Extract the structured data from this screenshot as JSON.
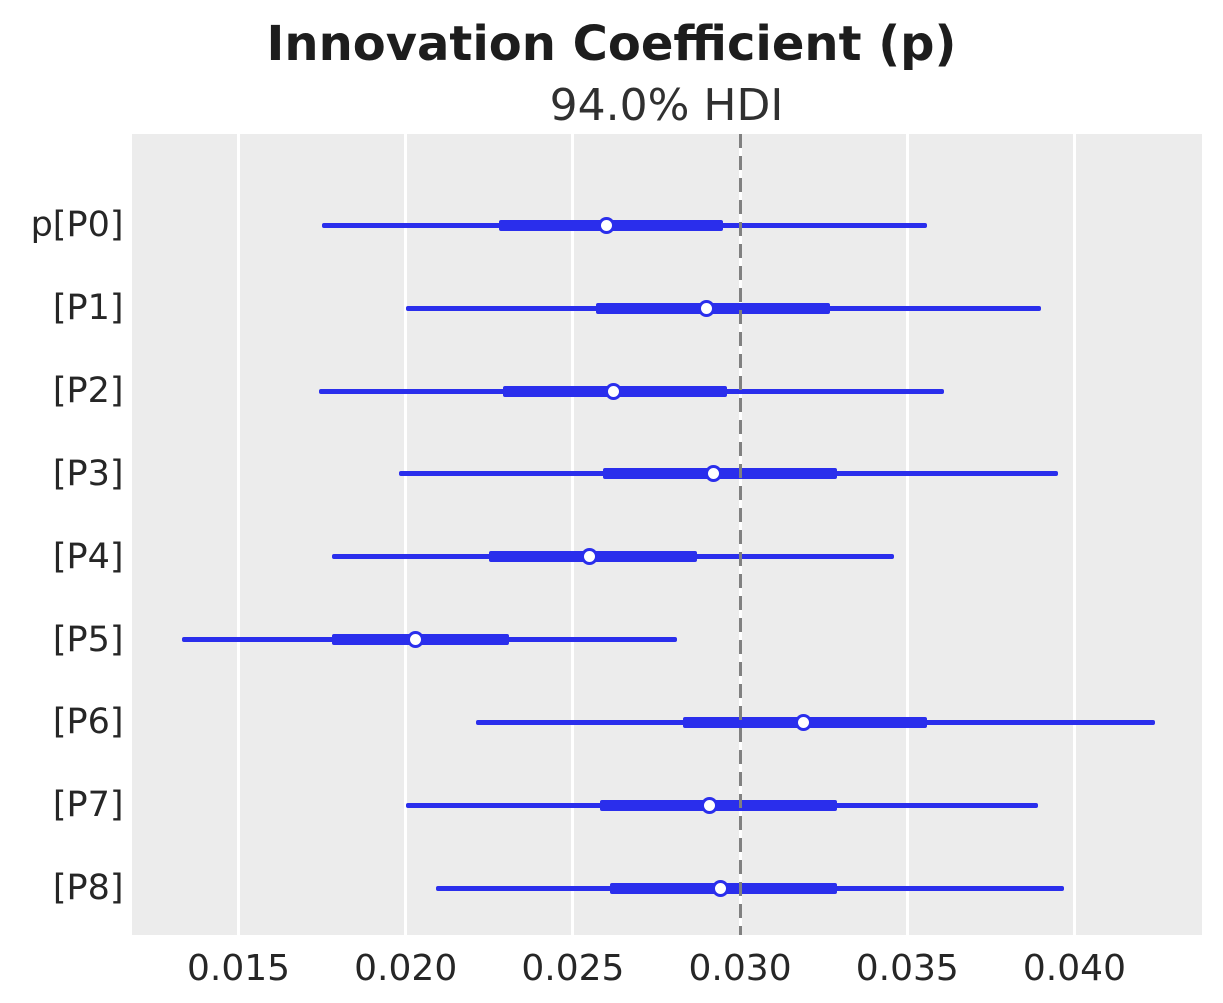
{
  "figure": {
    "title": "Innovation Coefficient (p)",
    "subtitle": "94.0% HDI"
  },
  "colors": {
    "interval": "#2a2eec",
    "marker_fill": "#ffffff",
    "marker_edge": "#2a2eec",
    "plot_background": "#ececec",
    "gridline": "#ffffff",
    "ref_line": "#808080",
    "tick_text": "#262626",
    "title_text": "#1d1d1d"
  },
  "chart_data": {
    "type": "forest",
    "title": "Innovation Coefficient (p)",
    "subtitle": "94.0% HDI",
    "hdi_probability": "94.0%",
    "xlim": [
      0.0118,
      0.0438
    ],
    "x_ticks": [
      0.015,
      0.02,
      0.025,
      0.03,
      0.035,
      0.04
    ],
    "x_tick_labels": [
      "0.015",
      "0.020",
      "0.025",
      "0.030",
      "0.035",
      "0.040"
    ],
    "ref_line_x": 0.03,
    "grid": true,
    "legend": false,
    "rows": [
      {
        "label": "p[P0]",
        "hdi_low": 0.0175,
        "q1": 0.0228,
        "median": 0.026,
        "q3": 0.0295,
        "hdi_high": 0.0356
      },
      {
        "label": "[P1]",
        "hdi_low": 0.02,
        "q1": 0.0257,
        "median": 0.029,
        "q3": 0.0327,
        "hdi_high": 0.039
      },
      {
        "label": "[P2]",
        "hdi_low": 0.0174,
        "q1": 0.0229,
        "median": 0.0262,
        "q3": 0.0296,
        "hdi_high": 0.0361
      },
      {
        "label": "[P3]",
        "hdi_low": 0.0198,
        "q1": 0.0259,
        "median": 0.0292,
        "q3": 0.0329,
        "hdi_high": 0.0395
      },
      {
        "label": "[P4]",
        "hdi_low": 0.0178,
        "q1": 0.0225,
        "median": 0.0255,
        "q3": 0.0287,
        "hdi_high": 0.0346
      },
      {
        "label": "[P5]",
        "hdi_low": 0.0133,
        "q1": 0.0178,
        "median": 0.0203,
        "q3": 0.0231,
        "hdi_high": 0.0281
      },
      {
        "label": "[P6]",
        "hdi_low": 0.0221,
        "q1": 0.0283,
        "median": 0.0319,
        "q3": 0.0356,
        "hdi_high": 0.0424
      },
      {
        "label": "[P7]",
        "hdi_low": 0.02,
        "q1": 0.0258,
        "median": 0.0291,
        "q3": 0.0329,
        "hdi_high": 0.0389
      },
      {
        "label": "[P8]",
        "hdi_low": 0.0209,
        "q1": 0.0261,
        "median": 0.0294,
        "q3": 0.0329,
        "hdi_high": 0.0397
      }
    ]
  }
}
